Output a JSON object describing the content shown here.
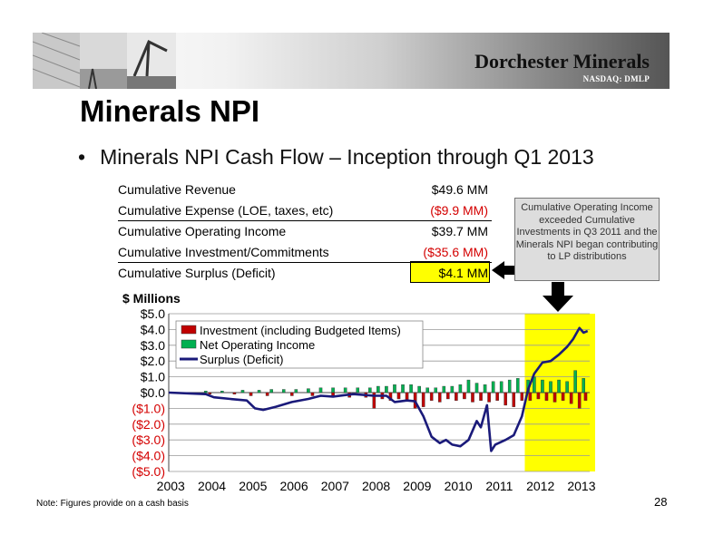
{
  "header": {
    "brand": "Dorchester Minerals",
    "ticker": "NASDAQ: DMLP"
  },
  "slide": {
    "title": "Minerals NPI",
    "bullet": "Minerals NPI Cash Flow – Inception through Q1 2013",
    "page_number": "28",
    "note": "Note: Figures provide on a cash basis"
  },
  "summary_table": [
    {
      "label": "Cumulative Revenue",
      "value": "$49.6 MM",
      "negative": false
    },
    {
      "label": "Cumulative Expense (LOE, taxes, etc)",
      "value": "($9.9 MM)",
      "negative": true
    },
    {
      "label": "Cumulative Operating Income",
      "value": "$39.7 MM",
      "negative": false
    },
    {
      "label": "Cumulative Investment/Commitments",
      "value": "($35.6 MM)",
      "negative": true
    },
    {
      "label": "Cumulative Surplus (Deficit)",
      "value": "$4.1 MM",
      "negative": false
    }
  ],
  "callout": {
    "text": "Cumulative Operating Income exceeded Cumulative Investments in Q3 2011 and the Minerals NPI began contributing to LP distributions"
  },
  "colors": {
    "investment": "#c00000",
    "operating": "#00b050",
    "surplus": "#1a1a7a",
    "highlight": "#ffff00"
  },
  "chart_data": {
    "type": "bar",
    "ylabel": "$ Millions",
    "ylim": [
      -5,
      5
    ],
    "yticks": [
      5,
      4,
      3,
      2,
      1,
      0,
      -1,
      -2,
      -3,
      -4,
      -5
    ],
    "ytick_labels": [
      "$5.0",
      "$4.0",
      "$3.0",
      "$2.0",
      "$1.0",
      "$0.0",
      "($1.0)",
      "($2.0)",
      "($3.0)",
      "($4.0)",
      "($5.0)"
    ],
    "xlim": [
      2003.0,
      2013.25
    ],
    "xticks": [
      2003,
      2004,
      2005,
      2006,
      2007,
      2008,
      2009,
      2010,
      2011,
      2012,
      2013
    ],
    "xtick_labels": [
      "2003",
      "2004",
      "2005",
      "2006",
      "2007",
      "2008",
      "2009",
      "2010",
      "2011",
      "2012",
      "2013"
    ],
    "highlight_range": [
      2011.67,
      2013.25
    ],
    "legend": {
      "placement": "top-left",
      "entries": [
        "Investment (including Budgeted Items)",
        "Net Operating Income",
        "Surplus (Deficit)"
      ]
    },
    "surplus_series": {
      "name": "Surplus (Deficit)",
      "points": [
        [
          2003.0,
          0.0
        ],
        [
          2003.5,
          -0.05
        ],
        [
          2003.9,
          -0.1
        ],
        [
          2004.1,
          -0.3
        ],
        [
          2004.5,
          -0.4
        ],
        [
          2004.9,
          -0.5
        ],
        [
          2005.1,
          -1.0
        ],
        [
          2005.3,
          -1.1
        ],
        [
          2005.6,
          -0.9
        ],
        [
          2006.0,
          -0.6
        ],
        [
          2006.4,
          -0.4
        ],
        [
          2006.7,
          -0.2
        ],
        [
          2007.0,
          -0.25
        ],
        [
          2007.5,
          -0.1
        ],
        [
          2008.0,
          -0.2
        ],
        [
          2008.3,
          -0.2
        ],
        [
          2008.5,
          -0.6
        ],
        [
          2008.8,
          -0.5
        ],
        [
          2009.0,
          -0.55
        ],
        [
          2009.2,
          -1.5
        ],
        [
          2009.4,
          -2.8
        ],
        [
          2009.5,
          -3.0
        ],
        [
          2009.6,
          -3.2
        ],
        [
          2009.75,
          -3.0
        ],
        [
          2009.9,
          -3.3
        ],
        [
          2010.1,
          -3.4
        ],
        [
          2010.3,
          -3.0
        ],
        [
          2010.5,
          -1.8
        ],
        [
          2010.6,
          -2.2
        ],
        [
          2010.75,
          -0.8
        ],
        [
          2010.85,
          -3.7
        ],
        [
          2010.95,
          -3.3
        ],
        [
          2011.2,
          -3.0
        ],
        [
          2011.4,
          -2.7
        ],
        [
          2011.6,
          -1.5
        ],
        [
          2011.75,
          0.2
        ],
        [
          2011.9,
          1.2
        ],
        [
          2012.1,
          1.9
        ],
        [
          2012.3,
          2.0
        ],
        [
          2012.5,
          2.4
        ],
        [
          2012.7,
          2.9
        ],
        [
          2012.85,
          3.4
        ],
        [
          2013.0,
          4.1
        ],
        [
          2013.1,
          3.8
        ],
        [
          2013.2,
          3.9
        ]
      ]
    },
    "operating_income_series": {
      "name": "Net Operating Income",
      "bar_width_years": 0.07,
      "points": [
        [
          2003.9,
          0.1
        ],
        [
          2004.3,
          0.1
        ],
        [
          2004.8,
          0.15
        ],
        [
          2005.2,
          0.15
        ],
        [
          2005.5,
          0.2
        ],
        [
          2005.8,
          0.2
        ],
        [
          2006.1,
          0.2
        ],
        [
          2006.4,
          0.25
        ],
        [
          2006.7,
          0.3
        ],
        [
          2007.0,
          0.3
        ],
        [
          2007.3,
          0.3
        ],
        [
          2007.6,
          0.3
        ],
        [
          2007.9,
          0.3
        ],
        [
          2008.1,
          0.4
        ],
        [
          2008.3,
          0.4
        ],
        [
          2008.5,
          0.5
        ],
        [
          2008.7,
          0.5
        ],
        [
          2008.9,
          0.5
        ],
        [
          2009.1,
          0.4
        ],
        [
          2009.3,
          0.3
        ],
        [
          2009.5,
          0.3
        ],
        [
          2009.7,
          0.4
        ],
        [
          2009.9,
          0.4
        ],
        [
          2010.1,
          0.5
        ],
        [
          2010.3,
          0.8
        ],
        [
          2010.5,
          0.6
        ],
        [
          2010.7,
          0.5
        ],
        [
          2010.9,
          0.7
        ],
        [
          2011.1,
          0.7
        ],
        [
          2011.3,
          0.8
        ],
        [
          2011.5,
          0.9
        ],
        [
          2011.75,
          0.8
        ],
        [
          2011.9,
          1.0
        ],
        [
          2012.1,
          0.8
        ],
        [
          2012.3,
          0.7
        ],
        [
          2012.5,
          0.8
        ],
        [
          2012.7,
          0.7
        ],
        [
          2012.9,
          1.4
        ],
        [
          2013.1,
          0.9
        ]
      ]
    },
    "investment_series": {
      "name": "Investment (including Budgeted Items)",
      "bar_width_years": 0.07,
      "points": [
        [
          2004.0,
          -0.1
        ],
        [
          2004.6,
          -0.1
        ],
        [
          2005.0,
          -0.2
        ],
        [
          2005.4,
          -0.2
        ],
        [
          2006.0,
          -0.2
        ],
        [
          2006.5,
          -0.2
        ],
        [
          2007.0,
          -0.3
        ],
        [
          2007.4,
          -0.3
        ],
        [
          2007.8,
          -0.3
        ],
        [
          2008.0,
          -1.0
        ],
        [
          2008.2,
          -0.4
        ],
        [
          2008.4,
          -0.5
        ],
        [
          2008.6,
          -0.4
        ],
        [
          2008.8,
          -0.5
        ],
        [
          2009.0,
          -1.0
        ],
        [
          2009.2,
          -0.9
        ],
        [
          2009.4,
          -0.5
        ],
        [
          2009.6,
          -0.6
        ],
        [
          2009.8,
          -0.4
        ],
        [
          2010.0,
          -0.5
        ],
        [
          2010.2,
          -0.4
        ],
        [
          2010.4,
          -0.6
        ],
        [
          2010.6,
          -0.5
        ],
        [
          2010.8,
          -0.6
        ],
        [
          2011.0,
          -0.5
        ],
        [
          2011.2,
          -0.8
        ],
        [
          2011.4,
          -0.9
        ],
        [
          2011.6,
          -0.5
        ],
        [
          2011.8,
          -0.5
        ],
        [
          2012.0,
          -0.4
        ],
        [
          2012.2,
          -0.5
        ],
        [
          2012.4,
          -0.6
        ],
        [
          2012.6,
          -0.5
        ],
        [
          2012.8,
          -0.7
        ],
        [
          2013.0,
          -1.0
        ],
        [
          2013.15,
          -0.5
        ]
      ]
    }
  }
}
